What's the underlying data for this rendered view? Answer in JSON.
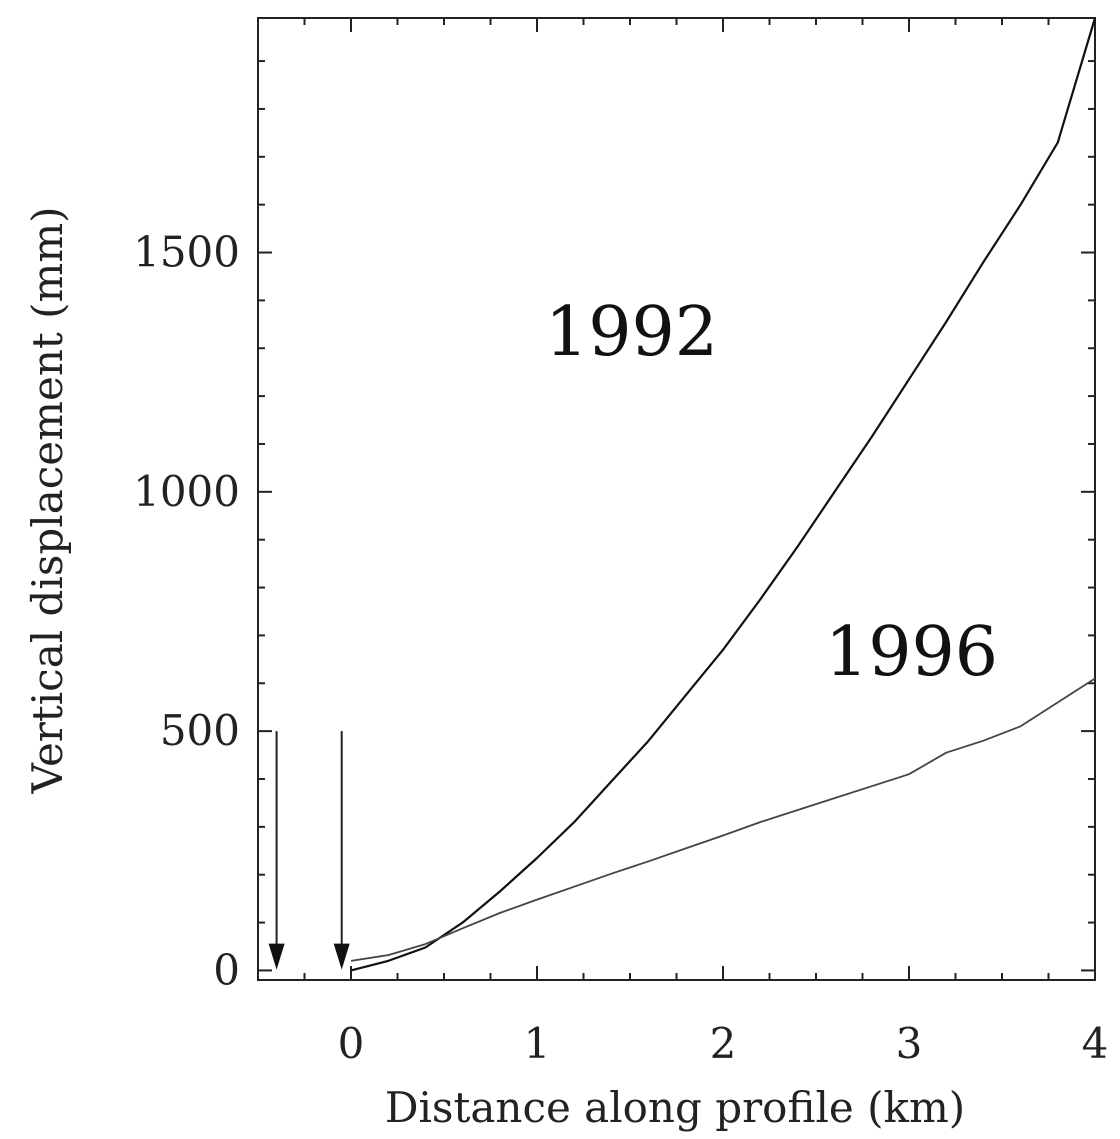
{
  "chart_data": {
    "type": "line",
    "xlabel": "Distance along profile (km)",
    "ylabel": "Vertical displacement (mm)",
    "xlim": [
      -0.5,
      4
    ],
    "ylim": [
      -20,
      1990
    ],
    "xticks": [
      "0",
      "1",
      "2",
      "3",
      "4"
    ],
    "yticks": [
      "0",
      "500",
      "1000",
      "1500"
    ],
    "grid": false,
    "series": [
      {
        "name": "1992",
        "x": [
          0,
          0.2,
          0.4,
          0.6,
          0.8,
          1.0,
          1.2,
          1.4,
          1.6,
          1.8,
          2.0,
          2.2,
          2.4,
          2.6,
          2.8,
          3.0,
          3.2,
          3.4,
          3.6,
          3.8,
          4.0
        ],
        "values": [
          0,
          20,
          48,
          100,
          165,
          235,
          310,
          395,
          480,
          575,
          670,
          775,
          885,
          1000,
          1115,
          1235,
          1355,
          1480,
          1600,
          1730,
          1990
        ]
      },
      {
        "name": "1996",
        "x": [
          0,
          0.2,
          0.4,
          0.6,
          0.8,
          1.0,
          1.2,
          1.4,
          1.6,
          1.8,
          2.0,
          2.2,
          2.4,
          2.6,
          2.8,
          3.0,
          3.2,
          3.4,
          3.6,
          3.8,
          4.0
        ],
        "values": [
          20,
          32,
          55,
          88,
          120,
          148,
          175,
          202,
          228,
          255,
          282,
          310,
          335,
          360,
          385,
          410,
          455,
          480,
          510,
          560,
          610
        ]
      }
    ],
    "arrows_x": [
      -0.4,
      -0.05
    ]
  }
}
